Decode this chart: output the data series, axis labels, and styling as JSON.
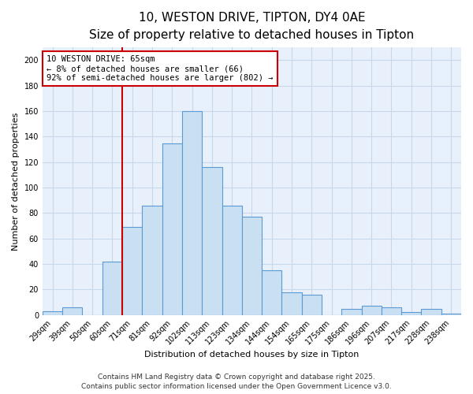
{
  "title": "10, WESTON DRIVE, TIPTON, DY4 0AE",
  "subtitle": "Size of property relative to detached houses in Tipton",
  "xlabel": "Distribution of detached houses by size in Tipton",
  "ylabel": "Number of detached properties",
  "bin_labels": [
    "29sqm",
    "39sqm",
    "50sqm",
    "60sqm",
    "71sqm",
    "81sqm",
    "92sqm",
    "102sqm",
    "113sqm",
    "123sqm",
    "134sqm",
    "144sqm",
    "154sqm",
    "165sqm",
    "175sqm",
    "186sqm",
    "196sqm",
    "207sqm",
    "217sqm",
    "228sqm",
    "238sqm"
  ],
  "bar_heights": [
    3,
    6,
    0,
    42,
    69,
    86,
    135,
    160,
    116,
    86,
    77,
    35,
    18,
    16,
    0,
    5,
    7,
    6,
    2,
    5,
    1
  ],
  "bar_color": "#c9dff2",
  "bar_edge_color": "#5b9bd5",
  "vline_x_idx": 4,
  "vline_color": "#cc0000",
  "annotation_text": "10 WESTON DRIVE: 65sqm\n← 8% of detached houses are smaller (66)\n92% of semi-detached houses are larger (802) →",
  "annotation_box_color": "#ffffff",
  "annotation_box_edge": "#cc0000",
  "ylim": [
    0,
    210
  ],
  "yticks": [
    0,
    20,
    40,
    60,
    80,
    100,
    120,
    140,
    160,
    180,
    200
  ],
  "footer1": "Contains HM Land Registry data © Crown copyright and database right 2025.",
  "footer2": "Contains public sector information licensed under the Open Government Licence v3.0.",
  "background_color": "#ffffff",
  "plot_bg_color": "#e8f0fb",
  "grid_color": "#c8d8ec",
  "title_fontsize": 11,
  "subtitle_fontsize": 9,
  "axis_label_fontsize": 8,
  "tick_fontsize": 7,
  "annotation_fontsize": 7.5,
  "footer_fontsize": 6.5
}
